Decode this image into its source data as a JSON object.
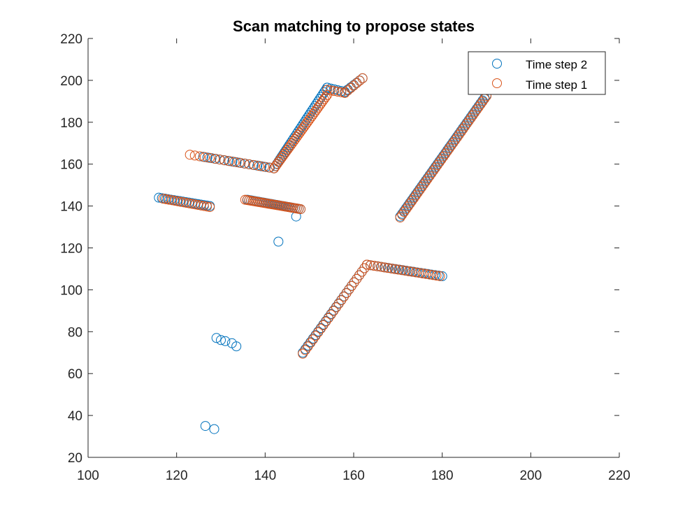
{
  "chart_data": {
    "type": "scatter",
    "title": "Scan matching to propose states",
    "xlabel": "",
    "ylabel": "",
    "xlim": [
      100,
      220
    ],
    "ylim": [
      20,
      220
    ],
    "xticks": [
      100,
      120,
      140,
      160,
      180,
      200,
      220
    ],
    "yticks": [
      20,
      40,
      60,
      80,
      100,
      120,
      140,
      160,
      180,
      200,
      220
    ],
    "grid": false,
    "legend_position": "top-right",
    "series": [
      {
        "name": "Time step 2",
        "color": "#0072BD",
        "segments": [
          {
            "from": [
              116,
              144
            ],
            "to": [
              127.5,
              140
            ],
            "n": 18
          },
          {
            "from": [
              126,
              163.5
            ],
            "to": [
              142,
              158
            ],
            "n": 18
          },
          {
            "from": [
              142,
              158
            ],
            "to": [
              154,
              196.5
            ],
            "n": 36
          },
          {
            "from": [
              154,
              196.5
            ],
            "to": [
              158,
              194.5
            ],
            "n": 6
          },
          {
            "from": [
              158,
              194.5
            ],
            "to": [
              162,
              201
            ],
            "n": 7
          },
          {
            "from": [
              136,
              143
            ],
            "to": [
              148,
              138.5
            ],
            "n": 30
          },
          {
            "from": [
              148.5,
              70
            ],
            "to": [
              163,
              112
            ],
            "n": 26
          },
          {
            "from": [
              163,
              112
            ],
            "to": [
              180,
              106.5
            ],
            "n": 22
          },
          {
            "from": [
              170.5,
              135
            ],
            "to": [
              190,
              193
            ],
            "n": 45
          }
        ],
        "points": [
          [
            143,
            123
          ],
          [
            147,
            135
          ],
          [
            129,
            77
          ],
          [
            130,
            76
          ],
          [
            131,
            75.5
          ],
          [
            132.5,
            74.5
          ],
          [
            133.5,
            73
          ],
          [
            126.5,
            35
          ],
          [
            128.5,
            33.5
          ]
        ]
      },
      {
        "name": "Time step 1",
        "color": "#D95319",
        "segments": [
          {
            "from": [
              117,
              143.5
            ],
            "to": [
              127.5,
              139.5
            ],
            "n": 17
          },
          {
            "from": [
              123,
              164.5
            ],
            "to": [
              142,
              158
            ],
            "n": 18
          },
          {
            "from": [
              142,
              158
            ],
            "to": [
              154,
              193
            ],
            "n": 36
          },
          {
            "from": [
              154,
              195.5
            ],
            "to": [
              158,
              194
            ],
            "n": 6
          },
          {
            "from": [
              158,
              194
            ],
            "to": [
              162,
              201
            ],
            "n": 7
          },
          {
            "from": [
              135.5,
              143
            ],
            "to": [
              148,
              138.5
            ],
            "n": 30
          },
          {
            "from": [
              148.5,
              69.5
            ],
            "to": [
              163,
              112
            ],
            "n": 26
          },
          {
            "from": [
              163,
              112
            ],
            "to": [
              179.5,
              106.5
            ],
            "n": 22
          },
          {
            "from": [
              170.5,
              134.5
            ],
            "to": [
              190,
              192.5
            ],
            "n": 45
          }
        ],
        "points": []
      }
    ]
  }
}
